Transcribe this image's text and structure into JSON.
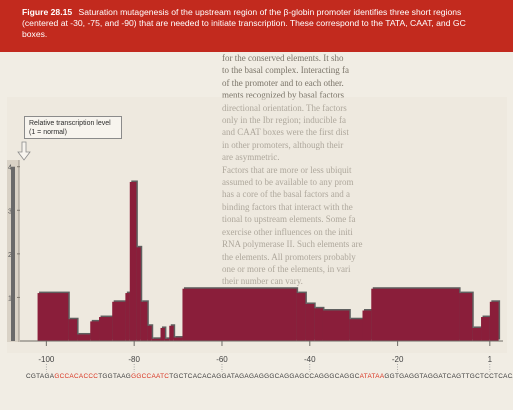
{
  "caption": {
    "figure_label": "Figure 28.15",
    "text": "Saturation mutagenesis of the upstream region of the β-globin promoter identifies three short regions (centered at -30, -75, and -90) that are needed to initiate transcription. These correspond to the TATA, CAAT, and GC boxes.",
    "background_color": "#c22a1e"
  },
  "callout": {
    "line1": "Relative transcription level",
    "line2": "(1 = normal)"
  },
  "background_text": [
    "for the conserved elements. It sho",
    "to the basal complex. Interacting fa",
    "of the promoter and to each other.",
    "ments recognized by basal factors",
    "directional orientation. The factors",
    "only in the Ibr region; inducible fa",
    "and CAAT boxes were the first dist",
    "in other promoters, although their",
    "are asymmetric.",
    "Factors that are more or less ubiquit",
    "assumed to be available to any prom",
    "has a core of the basal factors and a",
    "binding factors that interact with the",
    "tional to upstream elements. Some fa",
    "exercise other influences on the initi",
    "RNA polymerase II. Such elements are",
    "the elements. All promoters probably",
    "one or more of the elements, in vari",
    "their number can vary."
  ],
  "sequence": [
    {
      "text": "CGTAGA",
      "box": false
    },
    {
      "text": "GCCACACCC",
      "box": true
    },
    {
      "text": "TGGTAAG",
      "box": false
    },
    {
      "text": "GGCCAATC",
      "box": true
    },
    {
      "text": "TGCTCACACAGGATAGAGAGGGCAGGAGCCAGGGCAGGC",
      "box": false
    },
    {
      "text": "ATATAA",
      "box": true
    },
    {
      "text": "GGTGAGGTAGGATCAGTTGCTCCTCACA",
      "box": false
    }
  ],
  "chart_data": {
    "type": "bar",
    "title": "",
    "xlabel": "",
    "ylabel": "Relative transcription level (1 = normal)",
    "xlim": [
      -106,
      4
    ],
    "ylim": [
      0,
      4.2
    ],
    "x_ticks": [
      -100,
      -80,
      -60,
      -40,
      -20,
      1
    ],
    "x_tick_labels": [
      "-100",
      "-80",
      "-60",
      "-40",
      "-20",
      "1"
    ],
    "y_ticks": [
      1,
      2,
      3,
      4
    ],
    "y_tick_labels": [
      "1",
      "2",
      "3",
      "4"
    ],
    "bar_color": "#8a1e3a",
    "shadow_color": "#5f5f5f",
    "bars": [
      {
        "x0": -102,
        "x1": -95,
        "value": 1.1
      },
      {
        "x0": -95,
        "x1": -93,
        "value": 0.5
      },
      {
        "x0": -93,
        "x1": -90,
        "value": 0.15
      },
      {
        "x0": -90,
        "x1": -88,
        "value": 0.45
      },
      {
        "x0": -88,
        "x1": -85,
        "value": 0.55
      },
      {
        "x0": -85,
        "x1": -82,
        "value": 0.9
      },
      {
        "x0": -82,
        "x1": -81,
        "value": 1.1
      },
      {
        "x0": -81,
        "x1": -79.5,
        "value": 3.65
      },
      {
        "x0": -79.5,
        "x1": -78.5,
        "value": 2.15
      },
      {
        "x0": -78.5,
        "x1": -77,
        "value": 0.9
      },
      {
        "x0": -77,
        "x1": -76,
        "value": 0.35
      },
      {
        "x0": -76,
        "x1": -74,
        "value": 0.05
      },
      {
        "x0": -74,
        "x1": -73,
        "value": 0.3
      },
      {
        "x0": -73,
        "x1": -72,
        "value": 0.05
      },
      {
        "x0": -72,
        "x1": -71,
        "value": 0.35
      },
      {
        "x0": -71,
        "x1": -69,
        "value": 0.08
      },
      {
        "x0": -69,
        "x1": -43,
        "value": 1.2
      },
      {
        "x0": -43,
        "x1": -41,
        "value": 1.1
      },
      {
        "x0": -41,
        "x1": -39,
        "value": 0.85
      },
      {
        "x0": -39,
        "x1": -37,
        "value": 0.75
      },
      {
        "x0": -37,
        "x1": -31,
        "value": 0.7
      },
      {
        "x0": -31,
        "x1": -28,
        "value": 0.5
      },
      {
        "x0": -28,
        "x1": -26,
        "value": 0.7
      },
      {
        "x0": -26,
        "x1": -6,
        "value": 1.2
      },
      {
        "x0": -6,
        "x1": -3,
        "value": 1.1
      },
      {
        "x0": -3,
        "x1": -1,
        "value": 0.3
      },
      {
        "x0": -1,
        "x1": 1,
        "value": 0.55
      },
      {
        "x0": 1,
        "x1": 3,
        "value": 0.9
      }
    ]
  }
}
